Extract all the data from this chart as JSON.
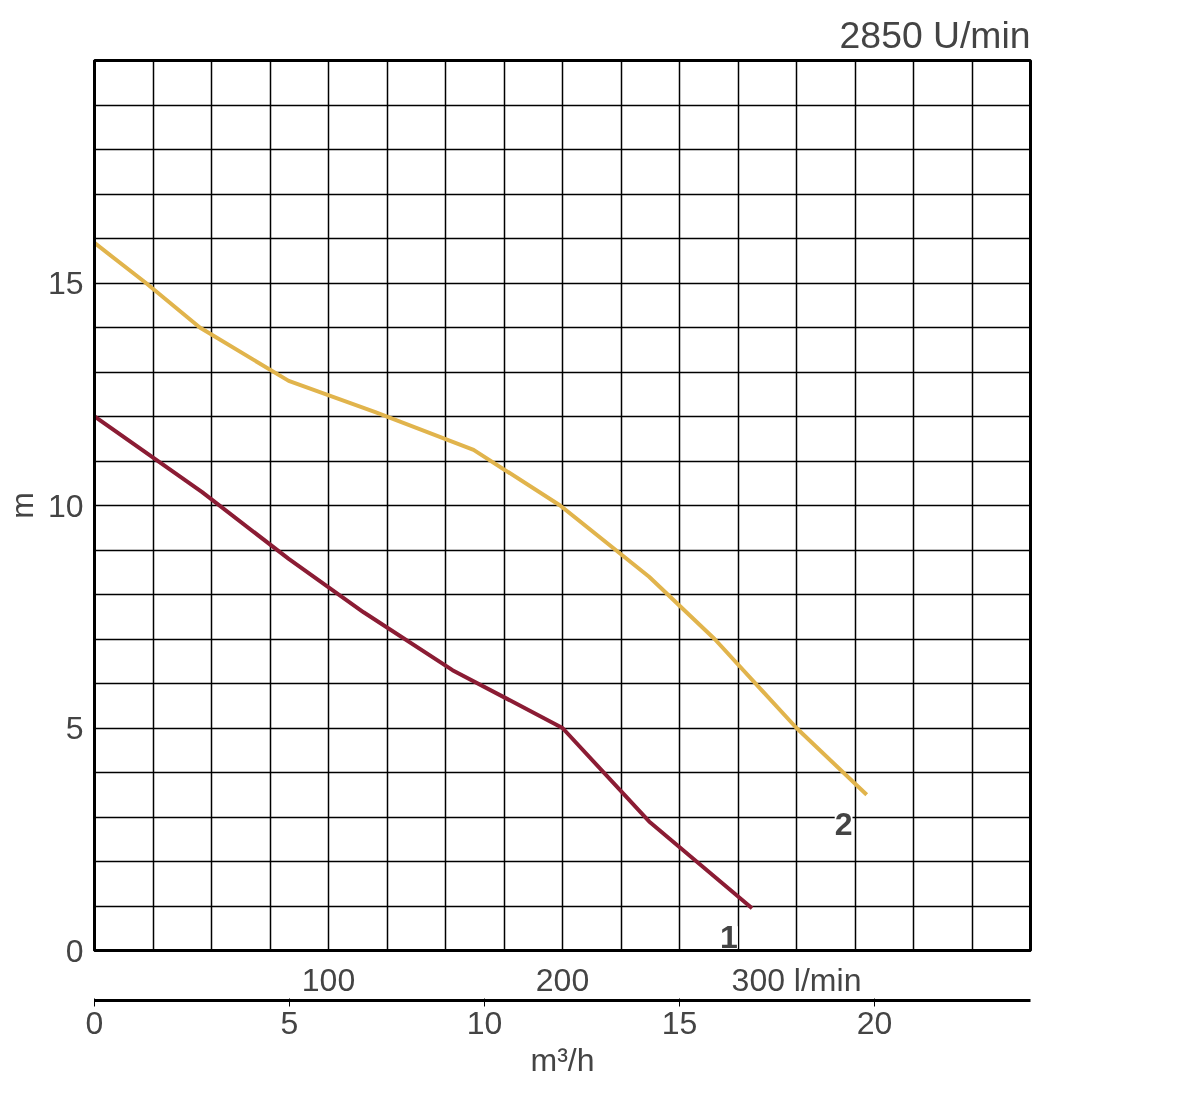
{
  "chart_data": {
    "type": "line",
    "title": "2850 U/min",
    "ylabel": "m",
    "x2label": "m³/h",
    "xlim": [
      0,
      400
    ],
    "xticks": [
      {
        "value": 25,
        "label": null
      },
      {
        "value": 50,
        "label": null
      },
      {
        "value": 75,
        "label": null
      },
      100,
      {
        "value": 125,
        "label": null
      },
      {
        "value": 150,
        "label": null
      },
      {
        "value": 175,
        "label": null
      },
      200,
      {
        "value": 225,
        "label": null
      },
      {
        "value": 250,
        "label": null
      },
      {
        "value": 275,
        "label": null
      },
      {
        "value": 300,
        "label": "300 l/min"
      },
      {
        "value": 325,
        "label": null
      },
      {
        "value": 350,
        "label": null
      },
      {
        "value": 375,
        "label": null
      }
    ],
    "x2lim": [
      0,
      24
    ],
    "x2ticks": [
      0,
      5,
      10,
      15,
      20
    ],
    "ylim": [
      0,
      20
    ],
    "yticks": [
      0,
      {
        "value": 1,
        "label": null
      },
      {
        "value": 2,
        "label": null
      },
      {
        "value": 3,
        "label": null
      },
      {
        "value": 4,
        "label": null
      },
      5,
      {
        "value": 6,
        "label": null
      },
      {
        "value": 7,
        "label": null
      },
      {
        "value": 8,
        "label": null
      },
      {
        "value": 9,
        "label": null
      },
      10,
      {
        "value": 11,
        "label": null
      },
      {
        "value": 12,
        "label": null
      },
      {
        "value": 13,
        "label": null
      },
      {
        "value": 14,
        "label": null
      },
      15,
      {
        "value": 16,
        "label": null
      },
      {
        "value": 17,
        "label": null
      },
      {
        "value": 18,
        "label": null
      },
      {
        "value": 19,
        "label": null
      }
    ],
    "grid": true,
    "marker": "none",
    "line_style": "solid",
    "series": [
      {
        "name": "1",
        "color": "#8b1c34",
        "x": [
          0,
          46,
          83,
          115,
          153,
          200,
          237,
          281
        ],
        "values": [
          12.0,
          10.3,
          8.8,
          7.6,
          6.3,
          5.0,
          2.9,
          0.95
        ]
      },
      {
        "name": "2",
        "color": "#e1b44c",
        "x": [
          0,
          22,
          45,
          83,
          120,
          162,
          199,
          237,
          265,
          300,
          330
        ],
        "values": [
          15.9,
          15.0,
          14.0,
          12.8,
          12.1,
          11.25,
          10.0,
          8.4,
          7.0,
          5.0,
          3.5
        ]
      }
    ]
  }
}
